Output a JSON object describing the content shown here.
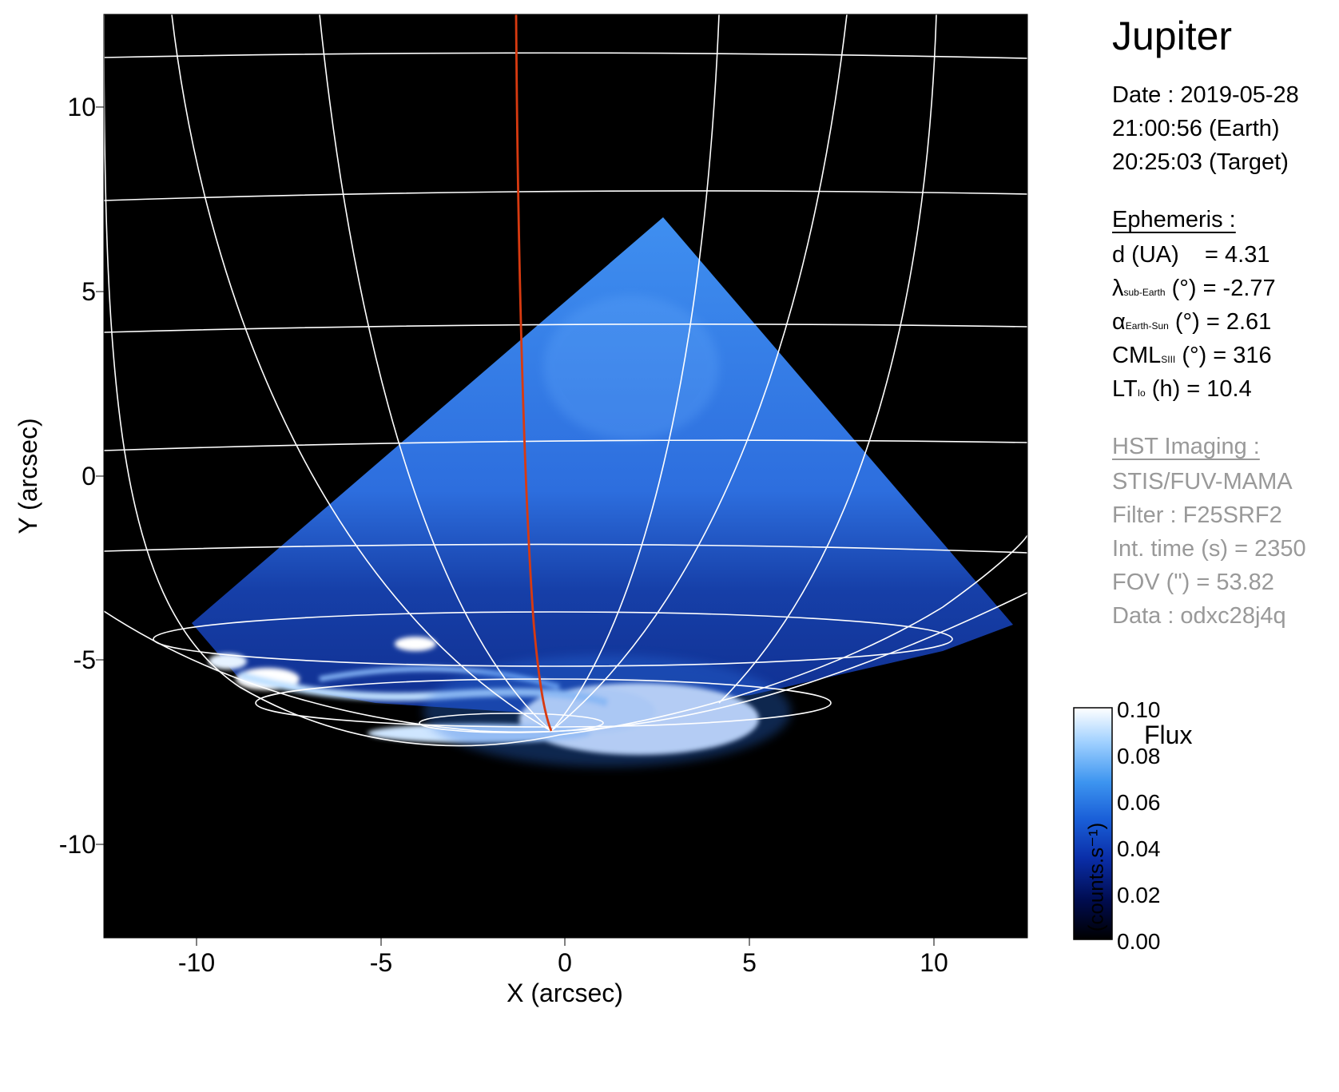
{
  "figure": {
    "title": "Jupiter",
    "date_line": "Date : 2019-05-28",
    "earth_time": "21:00:56 (Earth)",
    "target_time": "20:25:03 (Target)"
  },
  "ephemeris": {
    "header": "Ephemeris :",
    "d_label": "d (UA)",
    "d_value": "= 4.31",
    "lat_symbol": "λ",
    "lat_sub": "sub-Earth",
    "lat_rest": "(°) = -2.77",
    "phase_symbol": "α",
    "phase_sub": "Earth-Sun",
    "phase_rest": "(°) = 2.61",
    "cml_symbol": "CML",
    "cml_sub": "SIII",
    "cml_rest": "(°) = 316",
    "lt_symbol": "LT",
    "lt_sub": "Io",
    "lt_rest": "(h) = 10.4"
  },
  "hst": {
    "header": "HST Imaging :",
    "instrument": "STIS/FUV-MAMA",
    "filter": "Filter : F25SRF2",
    "int_time": "Int. time (s) = 2350",
    "fov": "FOV (\") = 53.82",
    "data": "Data : odxc28j4q"
  },
  "axes": {
    "xlabel": "X (arcsec)",
    "ylabel": "Y (arcsec)",
    "xticks": [
      "-10",
      "-5",
      "0",
      "5",
      "10"
    ],
    "yticks": [
      "10",
      "5",
      "0",
      "-5",
      "-10"
    ]
  },
  "colorbar": {
    "title": "Flux",
    "unit": "(counts.s⁻¹)",
    "ticks": [
      "0.10",
      "0.08",
      "0.06",
      "0.04",
      "0.02",
      "0.00"
    ],
    "colors": [
      "#000000",
      "#000c50",
      "#0a2ea8",
      "#1a5fd8",
      "#3d95f0",
      "#9fd0ff",
      "#ffffff"
    ]
  },
  "colors": {
    "grid": "#ffffff",
    "meridian_highlight": "#d83a10",
    "background": "#000000"
  }
}
